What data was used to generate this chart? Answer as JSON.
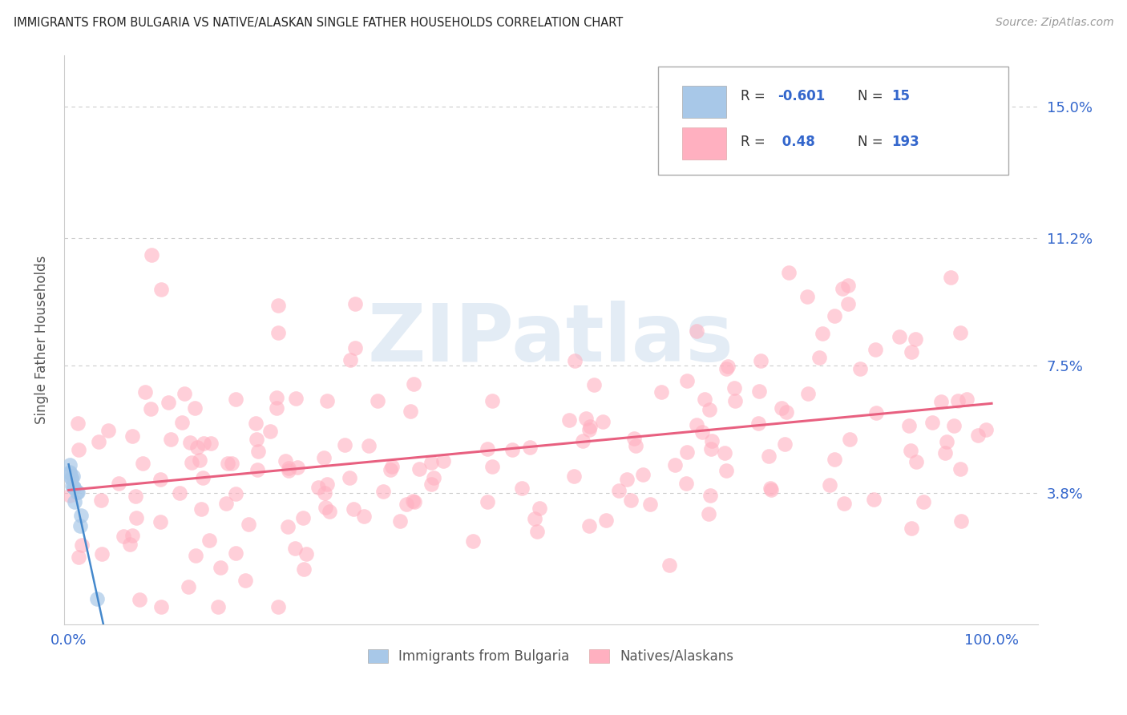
{
  "title": "IMMIGRANTS FROM BULGARIA VS NATIVE/ALASKAN SINGLE FATHER HOUSEHOLDS CORRELATION CHART",
  "source": "Source: ZipAtlas.com",
  "ylabel": "Single Father Households",
  "ytick_labels": [
    "3.8%",
    "7.5%",
    "11.2%",
    "15.0%"
  ],
  "ytick_values": [
    0.038,
    0.075,
    0.112,
    0.15
  ],
  "ymin": 0.0,
  "ymax": 0.165,
  "xmin": -0.005,
  "xmax": 1.05,
  "R_blue": -0.601,
  "N_blue": 15,
  "R_pink": 0.48,
  "N_pink": 193,
  "blue_color": "#a8c8e8",
  "pink_color": "#ffb0c0",
  "blue_line_color": "#4488cc",
  "pink_line_color": "#e86080",
  "title_color": "#222222",
  "axis_label_color": "#3366cc",
  "legend_R_color": "#3366cc",
  "grid_color": "#cccccc",
  "watermark": "ZIPatlas",
  "pink_trend_y0": 0.038,
  "pink_trend_y1": 0.068,
  "blue_trend_y0": 0.043,
  "blue_trend_slope": -0.55
}
